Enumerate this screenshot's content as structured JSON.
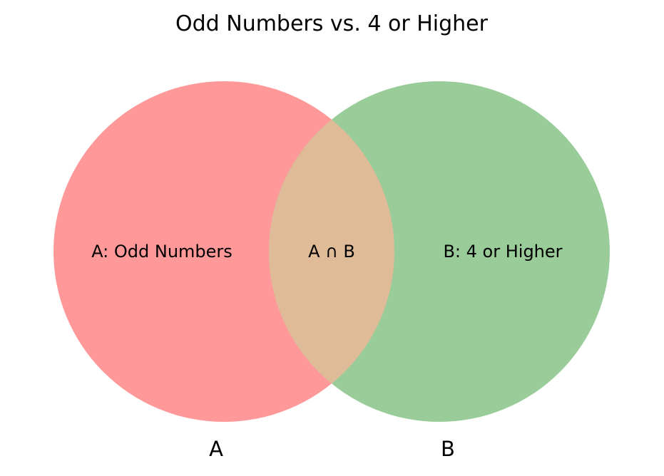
{
  "title": "Odd Numbers vs. 4 or Higher",
  "sets": {
    "a": {
      "name": "A",
      "region_label": "A: Odd Numbers",
      "color": "#ff9999"
    },
    "b": {
      "name": "B",
      "region_label": "B: 4 or Higher",
      "color": "#99cc99"
    }
  },
  "intersection": {
    "label": "A ∩ B",
    "color": "#dfbb98"
  }
}
